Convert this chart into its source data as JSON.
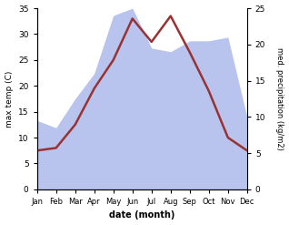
{
  "months": [
    "Jan",
    "Feb",
    "Mar",
    "Apr",
    "May",
    "Jun",
    "Jul",
    "Aug",
    "Sep",
    "Oct",
    "Nov",
    "Dec"
  ],
  "temperature": [
    7.5,
    8.0,
    12.5,
    19.5,
    25.0,
    33.0,
    28.5,
    33.5,
    26.5,
    19.0,
    10.0,
    7.5
  ],
  "precipitation": [
    9.5,
    8.5,
    12.5,
    16.0,
    24.0,
    25.0,
    19.5,
    19.0,
    20.5,
    20.5,
    21.0,
    10.0
  ],
  "temp_ylim": [
    0,
    35
  ],
  "precip_ylim": [
    0,
    25
  ],
  "temp_color": "#993333",
  "precip_fill_color": "#b8c4ee",
  "ylabel_left": "max temp (C)",
  "ylabel_right": "med. precipitation (kg/m2)",
  "xlabel": "date (month)",
  "background_color": "#ffffff",
  "temp_linewidth": 1.8,
  "left_yticks": [
    0,
    5,
    10,
    15,
    20,
    25,
    30,
    35
  ],
  "right_yticks": [
    0,
    5,
    10,
    15,
    20,
    25
  ]
}
